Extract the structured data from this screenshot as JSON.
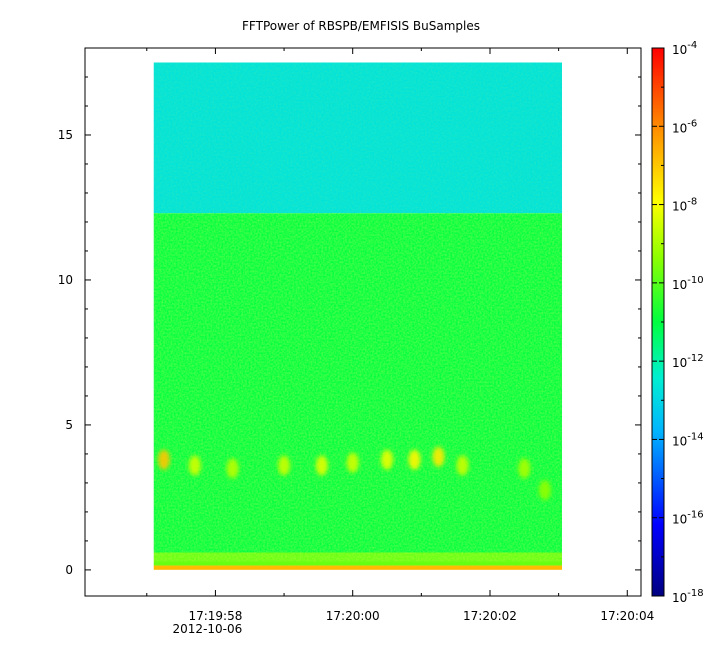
{
  "chart_data": {
    "type": "heatmap",
    "title": "FFTPower of RBSPB/EMFISIS  BuSamples",
    "xlabel": "",
    "ylabel": "",
    "y_ticks": [
      {
        "value": 0,
        "label": "0"
      },
      {
        "value": 5,
        "label": "5"
      },
      {
        "value": 10,
        "label": "10"
      },
      {
        "value": 15,
        "label": "15"
      }
    ],
    "ylim": [
      -0.9,
      18.0
    ],
    "x_ticks": [
      {
        "t": 58.0,
        "label": "17:19:58",
        "sublabel": "2012-10-06"
      },
      {
        "t": 60.0,
        "label": "17:20:00",
        "sublabel": ""
      },
      {
        "t": 62.0,
        "label": "17:20:02",
        "sublabel": ""
      },
      {
        "t": 64.0,
        "label": "17:20:04",
        "sublabel": ""
      }
    ],
    "xlim": [
      56.1,
      64.2
    ],
    "data_extent": {
      "t_start": 57.1,
      "t_end": 63.05,
      "y_min": 0.0,
      "y_max": 17.5
    },
    "colorbar": {
      "scale": "log",
      "range_exponents": [
        -18,
        -4
      ],
      "ticks": [
        {
          "exp": -4,
          "base": "10",
          "sup": "-4"
        },
        {
          "exp": -6,
          "base": "10",
          "sup": "-6"
        },
        {
          "exp": -8,
          "base": "10",
          "sup": "-8"
        },
        {
          "exp": -10,
          "base": "10",
          "sup": "-10"
        },
        {
          "exp": -12,
          "base": "10",
          "sup": "-12"
        },
        {
          "exp": -14,
          "base": "10",
          "sup": "-14"
        },
        {
          "exp": -16,
          "base": "10",
          "sup": "-16"
        },
        {
          "exp": -18,
          "base": "10",
          "sup": "-18"
        }
      ]
    },
    "bands": [
      {
        "y_from": 12.3,
        "y_to": 17.5,
        "level_exp": -12.7
      },
      {
        "y_from": 0.6,
        "y_to": 12.3,
        "level_exp": -11.0
      },
      {
        "y_from": 0.15,
        "y_to": 0.6,
        "level_exp": -9.8
      },
      {
        "y_from": 0.0,
        "y_to": 0.15,
        "level_exp": -6.8
      }
    ],
    "features": [
      {
        "t": 57.25,
        "y": 3.8,
        "level_exp": -7.0
      },
      {
        "t": 57.7,
        "y": 3.6,
        "level_exp": -8.5
      },
      {
        "t": 58.25,
        "y": 3.5,
        "level_exp": -8.8
      },
      {
        "t": 59.0,
        "y": 3.6,
        "level_exp": -8.6
      },
      {
        "t": 59.55,
        "y": 3.6,
        "level_exp": -8.3
      },
      {
        "t": 60.0,
        "y": 3.7,
        "level_exp": -8.5
      },
      {
        "t": 60.5,
        "y": 3.8,
        "level_exp": -8.2
      },
      {
        "t": 60.9,
        "y": 3.8,
        "level_exp": -7.8
      },
      {
        "t": 61.25,
        "y": 3.9,
        "level_exp": -7.6
      },
      {
        "t": 61.6,
        "y": 3.6,
        "level_exp": -8.6
      },
      {
        "t": 62.5,
        "y": 3.5,
        "level_exp": -9.0
      },
      {
        "t": 62.8,
        "y": 2.75,
        "level_exp": -9.3
      }
    ]
  }
}
